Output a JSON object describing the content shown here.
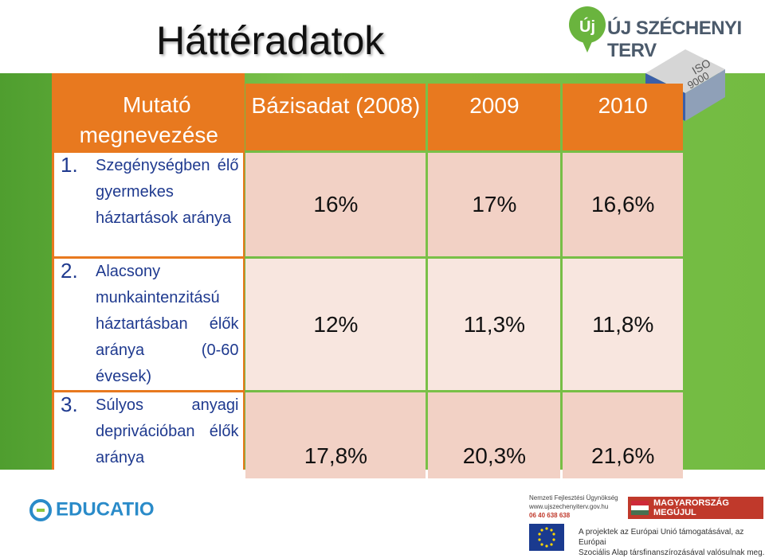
{
  "title": "Háttéradatok",
  "logos": {
    "szechenyi": "ÚJ SZÉCHENYI TERV",
    "szechenyi_mark": "Új",
    "iso_a": "ISO",
    "iso_b": "9000",
    "educatio": "EDUCATIO",
    "agency_line1": "Nemzeti Fejlesztési Ügynökség",
    "agency_line2": "www.ujszechenyiterv.gov.hu",
    "agency_line3": "06 40 638 638",
    "hungary": "MAGYARORSZÁG MEGÚJUL",
    "eu_text_line1": "A projektek az Európai Unió támogatásával, az Európai",
    "eu_text_line2": "Szociális Alap társfinanszírozásával valósulnak meg."
  },
  "table": {
    "header": {
      "label_line1": "Mutató",
      "label_line2": "megnevezése",
      "col1": "Bázisadat (2008)",
      "col2": "2009",
      "col3": "2010"
    },
    "rows": [
      {
        "num": "1.",
        "label": "Szegénységben élő gyermekes háztartások aránya",
        "v1": "16%",
        "v2": "17%",
        "v3": "16,6%"
      },
      {
        "num": "2.",
        "label": "Alacsony munkaintenzitású háztartásban élők aránya (0-60 évesek)",
        "v1": "12%",
        "v2": "11,3%",
        "v3": "11,8%"
      },
      {
        "num": "3.",
        "label": "Súlyos anyagi deprivációban élők aránya",
        "v1": "17,8%",
        "v2": "20,3%",
        "v3": "21,6%"
      }
    ]
  },
  "colors": {
    "orange": "#e8791f",
    "green": "#73bb42",
    "row_dark": "#f2d1c5",
    "row_light": "#f8e6df",
    "label_blue": "#1f3a8f"
  }
}
